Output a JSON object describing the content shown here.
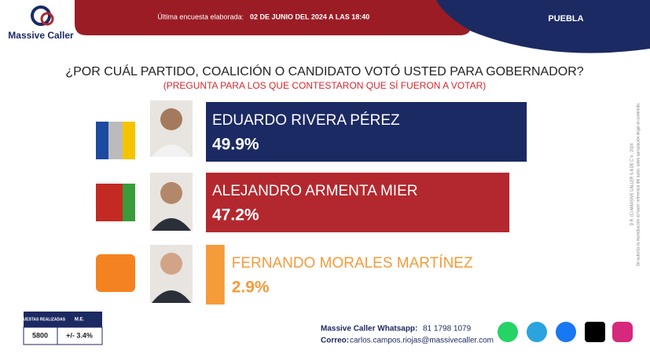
{
  "header": {
    "brand": "Massive Caller",
    "survey_label": "Última encuesta elaborada:",
    "survey_date": "02 DE JUNIO DEL 2024 A LAS 18:40",
    "region": "PUEBLA"
  },
  "chart_data": {
    "type": "bar",
    "orientation": "horizontal",
    "title": "¿POR CUÁL PARTIDO, COALICIÓN O CANDIDATO VOTÓ USTED PARA GOBERNADOR?",
    "subtitle": "(PREGUNTA PARA LOS QUE CONTESTARON QUE SÍ FUERON A VOTAR)",
    "categories": [
      "EDUARDO RIVERA PÉREZ",
      "ALEJANDRO ARMENTA MIER",
      "FERNANDO MORALES MARTÍNEZ"
    ],
    "values": [
      49.9,
      47.2,
      2.9
    ],
    "value_labels": [
      "49.9%",
      "47.2%",
      "2.9%"
    ],
    "colors": [
      "#1c2a63",
      "#b3282e",
      "#f59b3a"
    ]
  },
  "copyright": [
    "D.R. (C) MASSIVE CALLER S.A DE C.V., 2024",
    "Se autoriza la reproducción al hacer referencia del autor, salvo apropiación ilegal al contenido."
  ],
  "stats_table": {
    "headers": [
      "ENCUESTAS REALIZADAS",
      "M.E."
    ],
    "row": [
      "5800",
      "+/- 3.4%"
    ]
  },
  "footer": {
    "whatsapp_label": "Massive Caller Whatsapp:",
    "whatsapp": "81 1798 1079",
    "email_label": "Correo:",
    "email": "carlos.campos.riojas@massivecaller.com"
  }
}
